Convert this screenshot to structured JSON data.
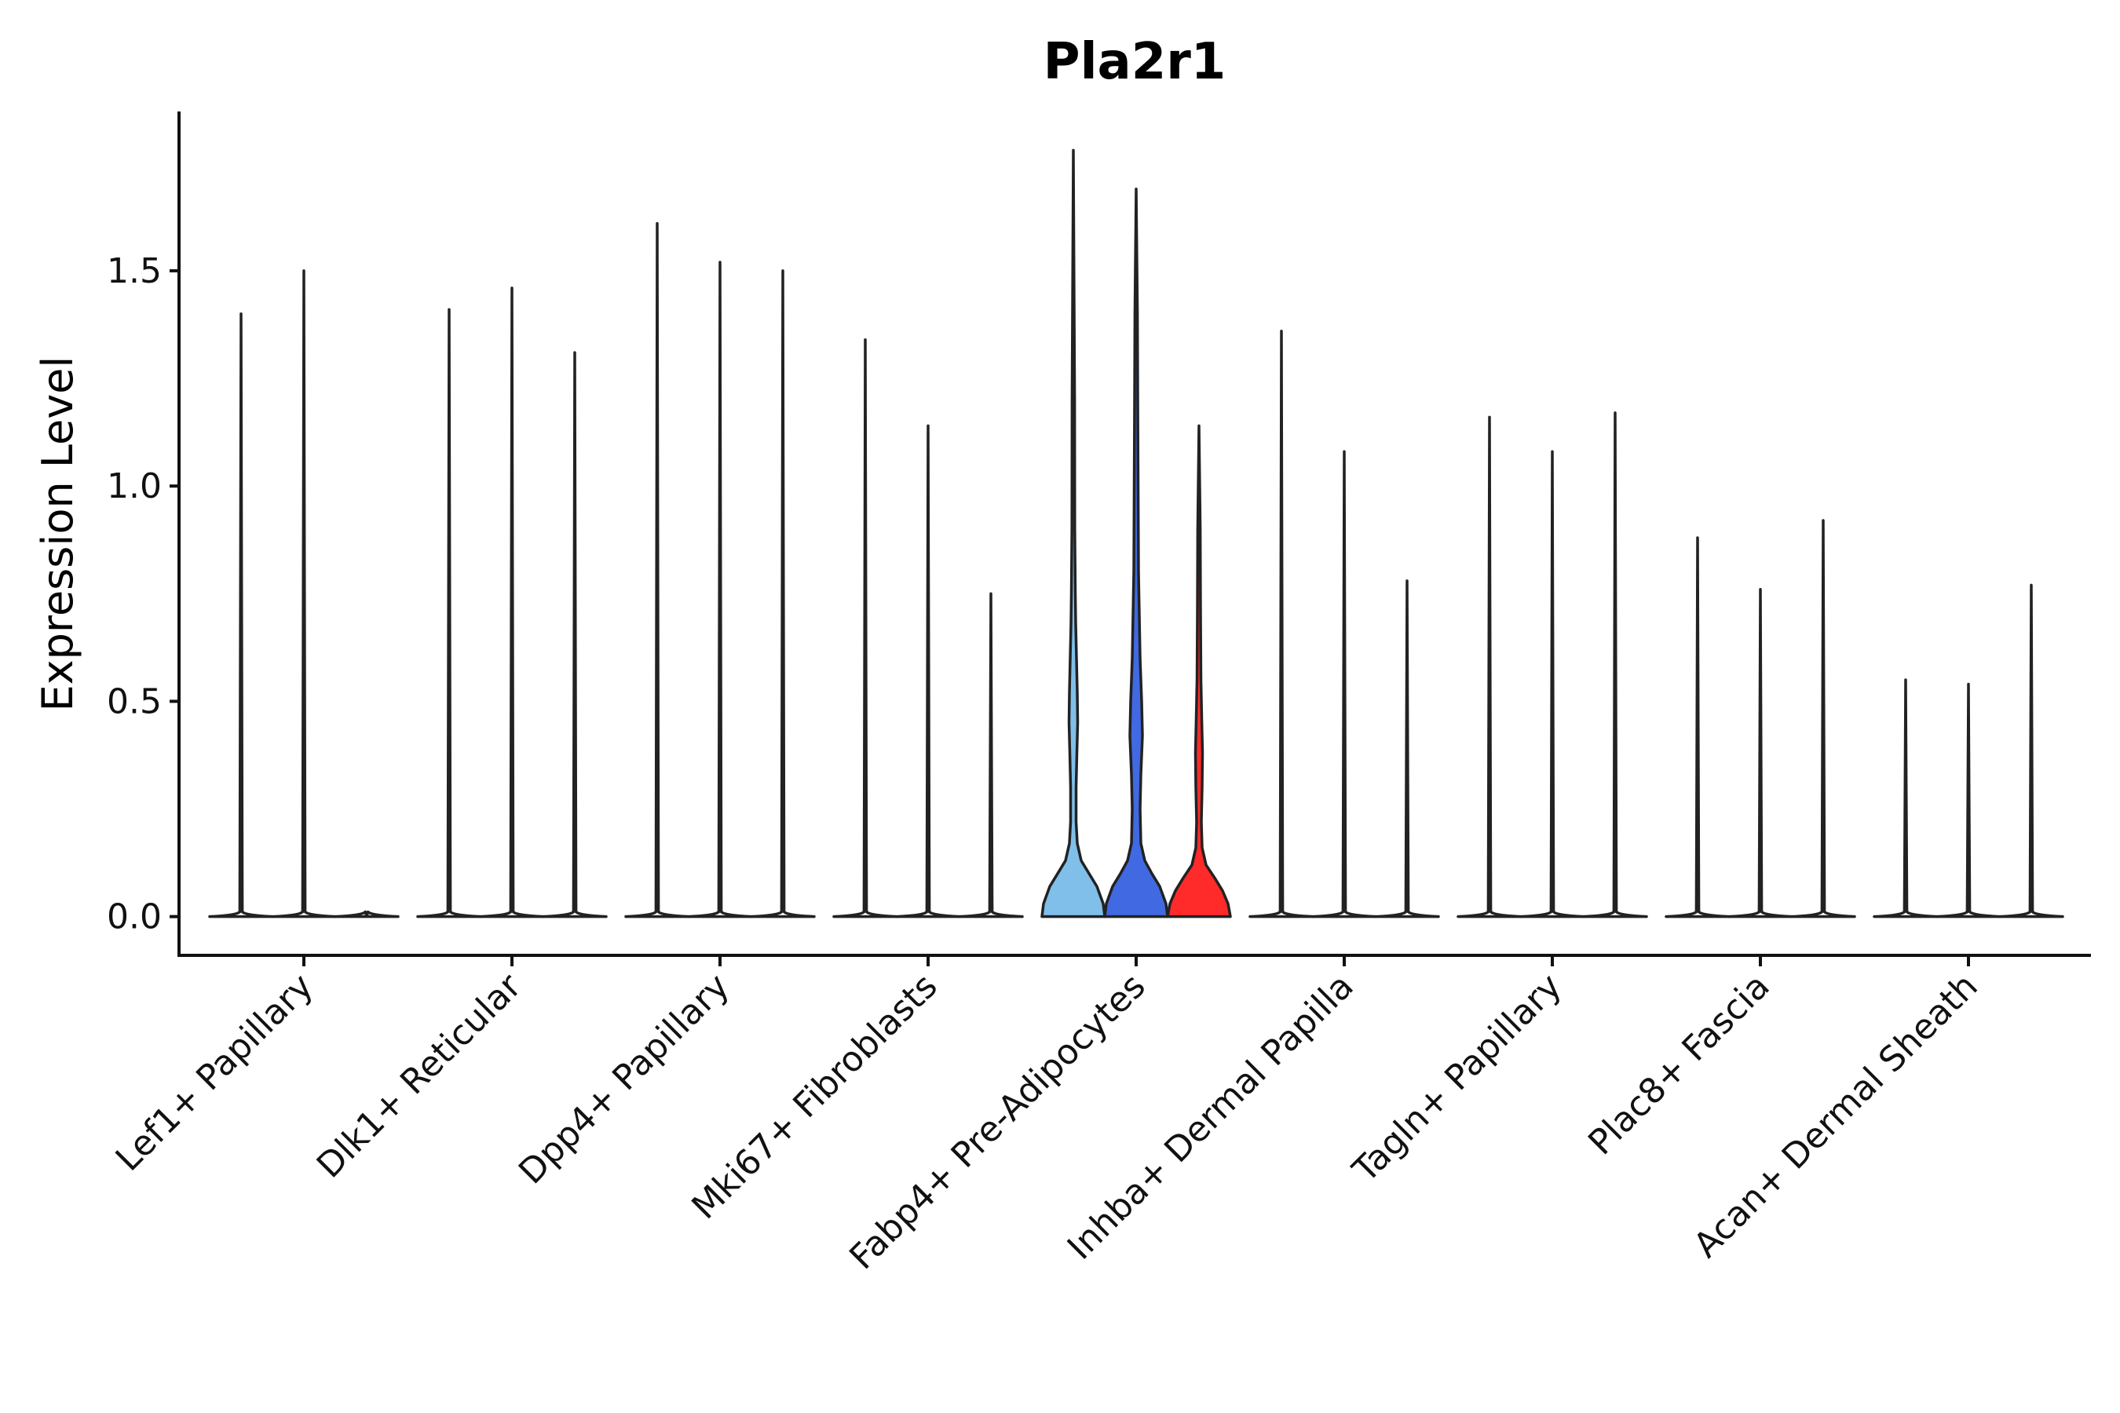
{
  "chart_data": {
    "type": "violin",
    "title": "Pla2r1",
    "xlabel": "",
    "ylabel": "Expression Level",
    "ylim": [
      -0.09,
      1.87
    ],
    "yticks": [
      0.0,
      0.5,
      1.0,
      1.5
    ],
    "ytick_labels": [
      "0.0",
      "0.5",
      "1.0",
      "1.5"
    ],
    "categories": [
      "Lef1+ Papillary",
      "Dlk1+ Reticular",
      "Dpp4+ Papillary",
      "Mki67+ Fibroblasts",
      "Fabp4+ Pre-Adipocytes",
      "Inhba+ Dermal Papilla",
      "Tagln+ Papillary",
      "Plac8+ Fascia",
      "Acan+ Dermal Sheath"
    ],
    "groups_per_category": 3,
    "violins": [
      {
        "category": "Lef1+ Papillary",
        "group": 1,
        "max": 1.4,
        "fill": "#ffffff"
      },
      {
        "category": "Lef1+ Papillary",
        "group": 2,
        "max": 1.5,
        "fill": "#ffffff"
      },
      {
        "category": "Lef1+ Papillary",
        "group": 3,
        "max": 0.0,
        "fill": "#ffffff"
      },
      {
        "category": "Dlk1+ Reticular",
        "group": 1,
        "max": 1.41,
        "fill": "#ffffff"
      },
      {
        "category": "Dlk1+ Reticular",
        "group": 2,
        "max": 1.46,
        "fill": "#ffffff"
      },
      {
        "category": "Dlk1+ Reticular",
        "group": 3,
        "max": 1.31,
        "fill": "#ffffff"
      },
      {
        "category": "Dpp4+ Papillary",
        "group": 1,
        "max": 1.61,
        "fill": "#ffffff"
      },
      {
        "category": "Dpp4+ Papillary",
        "group": 2,
        "max": 1.52,
        "fill": "#ffffff"
      },
      {
        "category": "Dpp4+ Papillary",
        "group": 3,
        "max": 1.5,
        "fill": "#ffffff"
      },
      {
        "category": "Mki67+ Fibroblasts",
        "group": 1,
        "max": 1.34,
        "fill": "#ffffff"
      },
      {
        "category": "Mki67+ Fibroblasts",
        "group": 2,
        "max": 1.14,
        "fill": "#ffffff"
      },
      {
        "category": "Mki67+ Fibroblasts",
        "group": 3,
        "max": 0.75,
        "fill": "#ffffff"
      },
      {
        "category": "Fabp4+ Pre-Adipocytes",
        "group": 1,
        "max": 1.78,
        "fill": "#7fbfea"
      },
      {
        "category": "Fabp4+ Pre-Adipocytes",
        "group": 2,
        "max": 1.69,
        "fill": "#4169e1"
      },
      {
        "category": "Fabp4+ Pre-Adipocytes",
        "group": 3,
        "max": 1.14,
        "fill": "#ff2a2a"
      },
      {
        "category": "Inhba+ Dermal Papilla",
        "group": 1,
        "max": 1.36,
        "fill": "#ffffff"
      },
      {
        "category": "Inhba+ Dermal Papilla",
        "group": 2,
        "max": 1.08,
        "fill": "#ffffff"
      },
      {
        "category": "Inhba+ Dermal Papilla",
        "group": 3,
        "max": 0.78,
        "fill": "#ffffff"
      },
      {
        "category": "Tagln+ Papillary",
        "group": 1,
        "max": 1.16,
        "fill": "#ffffff"
      },
      {
        "category": "Tagln+ Papillary",
        "group": 2,
        "max": 1.08,
        "fill": "#ffffff"
      },
      {
        "category": "Tagln+ Papillary",
        "group": 3,
        "max": 1.17,
        "fill": "#ffffff"
      },
      {
        "category": "Plac8+ Fascia",
        "group": 1,
        "max": 0.88,
        "fill": "#ffffff"
      },
      {
        "category": "Plac8+ Fascia",
        "group": 2,
        "max": 0.76,
        "fill": "#ffffff"
      },
      {
        "category": "Plac8+ Fascia",
        "group": 3,
        "max": 0.92,
        "fill": "#ffffff"
      },
      {
        "category": "Acan+ Dermal Sheath",
        "group": 1,
        "max": 0.55,
        "fill": "#ffffff"
      },
      {
        "category": "Acan+ Dermal Sheath",
        "group": 2,
        "max": 0.54,
        "fill": "#ffffff"
      },
      {
        "category": "Acan+ Dermal Sheath",
        "group": 3,
        "max": 0.77,
        "fill": "#ffffff"
      }
    ],
    "grid": false,
    "legend": "none"
  }
}
